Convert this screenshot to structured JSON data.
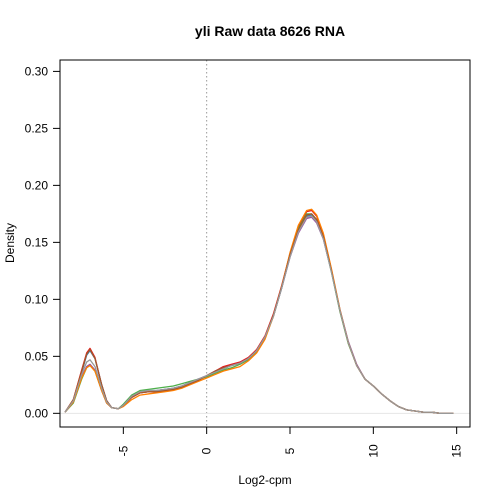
{
  "chart_data": {
    "type": "line",
    "title": "yli  Raw data  8626  RNA",
    "xlabel": "Log2-cpm",
    "ylabel": "Density",
    "xlim": [
      -8.8,
      15.8
    ],
    "ylim": [
      -0.012,
      0.31
    ],
    "x_ticks": [
      -5,
      0,
      5,
      10,
      15
    ],
    "x_tick_labels": [
      "-5",
      "0",
      "5",
      "10",
      "15"
    ],
    "y_ticks": [
      0.0,
      0.05,
      0.1,
      0.15,
      0.2,
      0.25,
      0.3
    ],
    "y_tick_labels": [
      "0.00",
      "0.05",
      "0.10",
      "0.15",
      "0.20",
      "0.25",
      "0.30"
    ],
    "grid": false,
    "legend": "none",
    "reference_lines": [
      {
        "orientation": "vertical",
        "value": 0,
        "style": "dotted",
        "color": "#999999"
      },
      {
        "orientation": "horizontal",
        "value": 0,
        "style": "solid",
        "color": "#e6e6e6"
      }
    ],
    "x": [
      -8.5,
      -8.0,
      -7.5,
      -7.2,
      -7.0,
      -6.7,
      -6.3,
      -6.0,
      -5.7,
      -5.3,
      -5.0,
      -4.5,
      -4.0,
      -3.5,
      -3.0,
      -2.5,
      -2.0,
      -1.5,
      -1.0,
      -0.5,
      0.0,
      0.5,
      1.0,
      1.5,
      2.0,
      2.5,
      3.0,
      3.5,
      4.0,
      4.5,
      5.0,
      5.5,
      6.0,
      6.3,
      6.6,
      7.0,
      7.5,
      8.0,
      8.5,
      9.0,
      9.5,
      10.0,
      10.5,
      11.0,
      11.5,
      12.0,
      12.5,
      13.0,
      13.5,
      14.0,
      14.5,
      14.8
    ],
    "series": [
      {
        "color": "#e41a1c",
        "values": [
          0.001,
          0.012,
          0.038,
          0.053,
          0.057,
          0.049,
          0.025,
          0.011,
          0.005,
          0.004,
          0.007,
          0.014,
          0.018,
          0.019,
          0.019,
          0.02,
          0.021,
          0.023,
          0.026,
          0.029,
          0.033,
          0.037,
          0.041,
          0.043,
          0.045,
          0.049,
          0.056,
          0.068,
          0.087,
          0.112,
          0.14,
          0.163,
          0.177,
          0.178,
          0.173,
          0.157,
          0.125,
          0.09,
          0.062,
          0.042,
          0.03,
          0.024,
          0.017,
          0.011,
          0.006,
          0.003,
          0.002,
          0.001,
          0.001,
          0.0,
          0.0,
          0.0
        ]
      },
      {
        "color": "#377eb8",
        "values": [
          0.001,
          0.011,
          0.036,
          0.051,
          0.055,
          0.048,
          0.025,
          0.011,
          0.005,
          0.004,
          0.007,
          0.015,
          0.019,
          0.02,
          0.02,
          0.021,
          0.022,
          0.024,
          0.027,
          0.03,
          0.033,
          0.036,
          0.039,
          0.042,
          0.044,
          0.048,
          0.055,
          0.067,
          0.085,
          0.11,
          0.138,
          0.16,
          0.173,
          0.174,
          0.169,
          0.154,
          0.124,
          0.09,
          0.062,
          0.042,
          0.03,
          0.024,
          0.017,
          0.011,
          0.006,
          0.003,
          0.002,
          0.001,
          0.001,
          0.0,
          0.0,
          0.0
        ]
      },
      {
        "color": "#4daf4a",
        "values": [
          0.001,
          0.009,
          0.03,
          0.04,
          0.042,
          0.037,
          0.02,
          0.009,
          0.005,
          0.004,
          0.008,
          0.016,
          0.02,
          0.021,
          0.022,
          0.023,
          0.024,
          0.026,
          0.028,
          0.03,
          0.032,
          0.035,
          0.038,
          0.04,
          0.043,
          0.047,
          0.054,
          0.066,
          0.085,
          0.11,
          0.139,
          0.162,
          0.175,
          0.175,
          0.17,
          0.154,
          0.123,
          0.089,
          0.061,
          0.042,
          0.03,
          0.024,
          0.017,
          0.011,
          0.006,
          0.003,
          0.002,
          0.001,
          0.001,
          0.0,
          0.0,
          0.0
        ]
      },
      {
        "color": "#984ea3",
        "values": [
          0.001,
          0.01,
          0.032,
          0.041,
          0.043,
          0.038,
          0.02,
          0.009,
          0.005,
          0.004,
          0.007,
          0.014,
          0.018,
          0.019,
          0.02,
          0.021,
          0.022,
          0.024,
          0.027,
          0.03,
          0.033,
          0.037,
          0.04,
          0.042,
          0.044,
          0.048,
          0.055,
          0.067,
          0.085,
          0.11,
          0.137,
          0.158,
          0.171,
          0.172,
          0.167,
          0.153,
          0.124,
          0.091,
          0.063,
          0.043,
          0.03,
          0.024,
          0.017,
          0.011,
          0.006,
          0.003,
          0.002,
          0.001,
          0.001,
          0.0,
          0.0,
          0.0
        ]
      },
      {
        "color": "#ff7f00",
        "values": [
          0.001,
          0.01,
          0.031,
          0.04,
          0.042,
          0.037,
          0.02,
          0.009,
          0.005,
          0.004,
          0.006,
          0.012,
          0.016,
          0.017,
          0.018,
          0.019,
          0.02,
          0.022,
          0.025,
          0.028,
          0.031,
          0.034,
          0.037,
          0.039,
          0.041,
          0.046,
          0.053,
          0.065,
          0.085,
          0.111,
          0.141,
          0.165,
          0.178,
          0.179,
          0.174,
          0.158,
          0.126,
          0.091,
          0.062,
          0.042,
          0.03,
          0.024,
          0.017,
          0.011,
          0.006,
          0.003,
          0.002,
          0.001,
          0.001,
          0.0,
          0.0,
          0.0
        ]
      },
      {
        "color": "#a65628",
        "values": [
          0.001,
          0.012,
          0.037,
          0.052,
          0.056,
          0.048,
          0.025,
          0.011,
          0.005,
          0.004,
          0.007,
          0.014,
          0.018,
          0.019,
          0.019,
          0.02,
          0.021,
          0.023,
          0.026,
          0.029,
          0.033,
          0.037,
          0.04,
          0.042,
          0.044,
          0.048,
          0.055,
          0.067,
          0.086,
          0.111,
          0.139,
          0.161,
          0.174,
          0.175,
          0.17,
          0.155,
          0.124,
          0.09,
          0.062,
          0.042,
          0.03,
          0.024,
          0.017,
          0.011,
          0.006,
          0.003,
          0.002,
          0.001,
          0.001,
          0.0,
          0.0,
          0.0
        ]
      },
      {
        "color": "#999999",
        "values": [
          0.001,
          0.011,
          0.034,
          0.045,
          0.047,
          0.041,
          0.022,
          0.01,
          0.005,
          0.004,
          0.007,
          0.015,
          0.019,
          0.02,
          0.02,
          0.021,
          0.022,
          0.024,
          0.027,
          0.03,
          0.033,
          0.036,
          0.039,
          0.042,
          0.044,
          0.048,
          0.055,
          0.067,
          0.085,
          0.11,
          0.137,
          0.159,
          0.172,
          0.173,
          0.168,
          0.153,
          0.123,
          0.09,
          0.062,
          0.042,
          0.03,
          0.024,
          0.017,
          0.011,
          0.006,
          0.003,
          0.002,
          0.001,
          0.001,
          0.0,
          0.0,
          0.0
        ]
      }
    ]
  }
}
